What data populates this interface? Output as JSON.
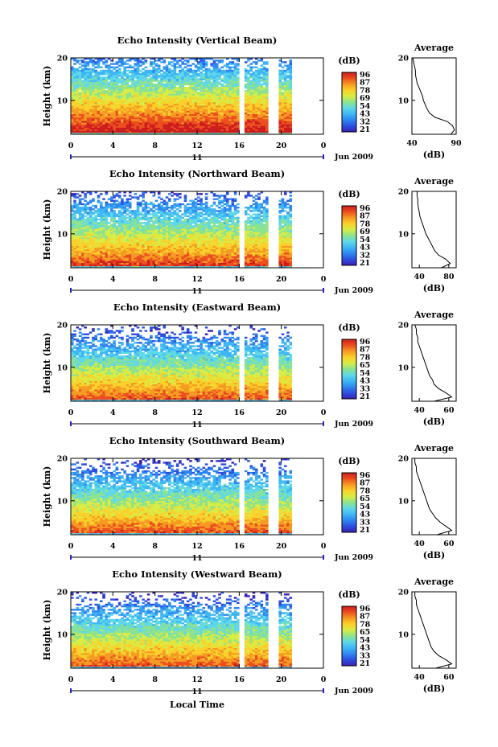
{
  "chart_data": {
    "type": "heatmap",
    "panels": [
      {
        "title": "Echo Intensity (Vertical Beam)",
        "ylabel": "Height (km)",
        "ylim": [
          2,
          20
        ],
        "yticks": [
          "20",
          "10"
        ],
        "xticks": [
          "0",
          "4",
          "8",
          "12",
          "16",
          "20",
          "0"
        ],
        "xlim": [
          0,
          24
        ],
        "day_label": "11",
        "date_label": "Jun 2009",
        "data_gaps_hours": [
          [
            16,
            16.5
          ],
          [
            18.8,
            19.7
          ],
          [
            21,
            24
          ]
        ],
        "avg_profile": {
          "title": "Average",
          "xlabel": "(dB)",
          "xticks": [
            "40",
            "90"
          ],
          "xlim": [
            40,
            90
          ],
          "yticks": [
            "20",
            "10"
          ],
          "height_km": [
            2,
            3,
            4,
            5,
            6,
            7,
            8,
            9,
            10,
            11,
            12,
            13,
            14,
            15,
            16,
            17,
            18,
            19,
            20
          ],
          "db": [
            84,
            88,
            86,
            80,
            66,
            60,
            57,
            55,
            53,
            52,
            50,
            48,
            46,
            45,
            44,
            44,
            43,
            42,
            41
          ]
        }
      },
      {
        "title": "Echo Intensity (Northward Beam)",
        "ylabel": "Height (km)",
        "ylim": [
          2,
          20
        ],
        "yticks": [
          "20",
          "10"
        ],
        "xticks": [
          "0",
          "4",
          "8",
          "12",
          "16",
          "20",
          "0"
        ],
        "xlim": [
          0,
          24
        ],
        "day_label": "11",
        "date_label": "Jun 2009",
        "data_gaps_hours": [
          [
            16,
            16.5
          ],
          [
            18.8,
            19.7
          ],
          [
            21,
            24
          ]
        ],
        "avg_profile": {
          "title": "Average",
          "xlabel": "(dB)",
          "xticks": [
            "40",
            "80"
          ],
          "xlim": [
            30,
            90
          ],
          "yticks": [
            "20",
            "10"
          ],
          "height_km": [
            2,
            3,
            4,
            5,
            6,
            7,
            8,
            9,
            10,
            11,
            12,
            13,
            14,
            15,
            16,
            17,
            18,
            19,
            20
          ],
          "db": [
            70,
            82,
            76,
            66,
            61,
            58,
            55,
            52,
            49,
            47,
            45,
            43,
            41,
            40,
            39,
            38,
            38,
            37,
            37
          ]
        }
      },
      {
        "title": "Echo Intensity (Eastward Beam)",
        "ylabel": "Height (km)",
        "ylim": [
          2,
          20
        ],
        "yticks": [
          "20",
          "10"
        ],
        "xticks": [
          "0",
          "4",
          "8",
          "12",
          "16",
          "20",
          "0"
        ],
        "xlim": [
          0,
          24
        ],
        "day_label": "11",
        "date_label": "Jun 2009",
        "data_gaps_hours": [
          [
            16,
            16.5
          ],
          [
            18.8,
            19.7
          ],
          [
            21,
            24
          ]
        ],
        "avg_profile": {
          "title": "Average",
          "xlabel": "(dB)",
          "xticks": [
            "40",
            "60"
          ],
          "xlim": [
            35,
            65
          ],
          "yticks": [
            "20",
            "10"
          ],
          "height_km": [
            2,
            3,
            4,
            5,
            6,
            7,
            8,
            9,
            10,
            11,
            12,
            13,
            14,
            15,
            16,
            17,
            18,
            19,
            20
          ],
          "db": [
            50,
            62,
            58,
            53,
            50,
            49,
            47,
            46,
            45,
            44,
            43,
            42,
            41,
            40,
            39,
            39,
            38,
            38,
            37
          ]
        }
      },
      {
        "title": "Echo Intensity (Southward Beam)",
        "ylabel": "Height (km)",
        "ylim": [
          2,
          20
        ],
        "yticks": [
          "20",
          "10"
        ],
        "xticks": [
          "0",
          "4",
          "8",
          "12",
          "16",
          "20",
          "0"
        ],
        "xlim": [
          0,
          24
        ],
        "day_label": "11",
        "date_label": "Jun 2009",
        "data_gaps_hours": [
          [
            16,
            16.5
          ],
          [
            18.8,
            19.7
          ],
          [
            21,
            24
          ]
        ],
        "avg_profile": {
          "title": "Average",
          "xlabel": "(dB)",
          "xticks": [
            "40",
            "60"
          ],
          "xlim": [
            35,
            65
          ],
          "yticks": [
            "20",
            "10"
          ],
          "height_km": [
            2,
            3,
            4,
            5,
            6,
            7,
            8,
            9,
            10,
            11,
            12,
            13,
            14,
            15,
            16,
            17,
            18,
            19,
            20
          ],
          "db": [
            52,
            62,
            58,
            54,
            51,
            49,
            47,
            46,
            45,
            44,
            43,
            42,
            41,
            40,
            39,
            38,
            38,
            37,
            37
          ]
        }
      },
      {
        "title": "Echo Intensity (Westward Beam)",
        "ylabel": "Height (km)",
        "ylim": [
          2,
          20
        ],
        "yticks": [
          "20",
          "10"
        ],
        "xticks": [
          "0",
          "4",
          "8",
          "12",
          "16",
          "20",
          "0"
        ],
        "xlim": [
          0,
          24
        ],
        "day_label": "11",
        "date_label": "Jun 2009",
        "data_gaps_hours": [
          [
            16,
            16.5
          ],
          [
            18.8,
            19.7
          ],
          [
            21,
            24
          ]
        ],
        "avg_profile": {
          "title": "Average",
          "xlabel": "(dB)",
          "xticks": [
            "40",
            "60"
          ],
          "xlim": [
            35,
            65
          ],
          "yticks": [
            "20",
            "10"
          ],
          "height_km": [
            2,
            3,
            4,
            5,
            6,
            7,
            8,
            9,
            10,
            11,
            12,
            13,
            14,
            15,
            16,
            17,
            18,
            19,
            20
          ],
          "db": [
            51,
            62,
            58,
            53,
            50,
            48,
            47,
            46,
            45,
            44,
            43,
            42,
            41,
            40,
            39,
            38,
            38,
            37,
            37
          ]
        }
      }
    ],
    "colorbar": {
      "label": "(dB)",
      "ticks": [
        "96",
        "87",
        "78",
        "69",
        "54",
        "43",
        "32",
        "21"
      ],
      "ticks_by_panel": [
        [
          "96",
          "87",
          "78",
          "69",
          "54",
          "43",
          "32",
          "21"
        ],
        [
          "96",
          "87",
          "78",
          "69",
          "54",
          "43",
          "32",
          "21"
        ],
        [
          "96",
          "87",
          "78",
          "65",
          "54",
          "43",
          "33",
          "21"
        ],
        [
          "96",
          "87",
          "78",
          "65",
          "54",
          "43",
          "33",
          "21"
        ],
        [
          "96",
          "87",
          "78",
          "65",
          "54",
          "43",
          "33",
          "21"
        ]
      ],
      "colors": [
        "#3a1fb5",
        "#2d4fe0",
        "#2f86f0",
        "#3fb6f4",
        "#5fd8e8",
        "#8de38d",
        "#d8ec45",
        "#fbd02a",
        "#f59a22",
        "#ec4e1f",
        "#cc1d1d"
      ]
    },
    "x_axis_title": "Local Time"
  }
}
